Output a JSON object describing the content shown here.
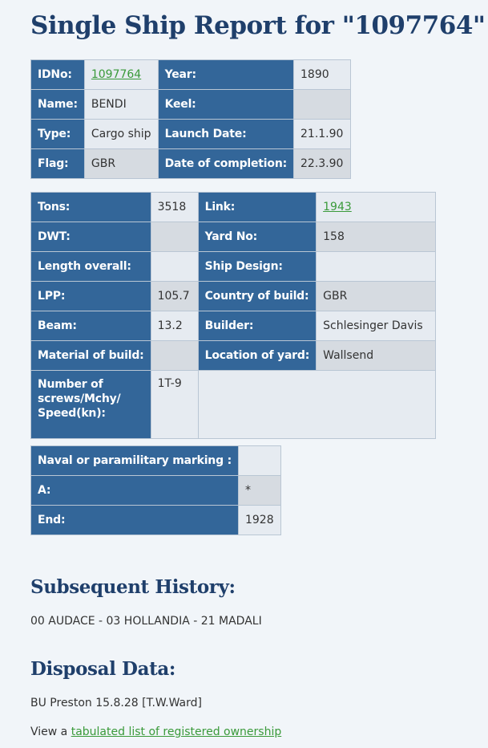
{
  "page_title": "Single Ship Report for \"1097764\"",
  "table1": {
    "idno_label": "IDNo:",
    "idno_value": "1097764",
    "year_label": "Year:",
    "year_value": "1890",
    "name_label": "Name:",
    "name_value": "BENDI",
    "keel_label": "Keel:",
    "keel_value": "",
    "type_label": "Type:",
    "type_value": "Cargo ship",
    "launch_label": "Launch Date:",
    "launch_value": "21.1.90",
    "flag_label": "Flag:",
    "flag_value": "GBR",
    "completion_label": "Date of completion:",
    "completion_value": "22.3.90"
  },
  "table2": {
    "tons_label": "Tons:",
    "tons_value": "3518",
    "link_label": "Link:",
    "link_value": "1943",
    "dwt_label": "DWT:",
    "dwt_value": "",
    "yard_no_label": "Yard No:",
    "yard_no_value": "158",
    "length_label": "Length overall:",
    "length_value": "",
    "design_label": "Ship Design:",
    "design_value": "",
    "lpp_label": "LPP:",
    "lpp_value": "105.7",
    "country_label": "Country of build:",
    "country_value": "GBR",
    "beam_label": "Beam:",
    "beam_value": "13.2",
    "builder_label": "Builder:",
    "builder_value": "Schlesinger Davis",
    "material_label": "Material of build:",
    "material_value": "",
    "location_label": "Location of yard:",
    "location_value": "Wallsend",
    "screws_label": "Number of screws/Mchy/ Speed(kn):",
    "screws_value": "1T-9"
  },
  "table3": {
    "marking_label": "Naval or paramilitary marking :",
    "marking_value": "",
    "a_label": "A:",
    "a_value": "*",
    "end_label": "End:",
    "end_value": "1928"
  },
  "history": {
    "heading": "Subsequent History:",
    "text": "00 AUDACE - 03 HOLLANDIA - 21 MADALI"
  },
  "disposal": {
    "heading": "Disposal Data:",
    "text": "BU Preston 15.8.28 [T.W.Ward]"
  },
  "ownership": {
    "prefix": "View a ",
    "link_text": "tabulated list of registered ownership"
  }
}
